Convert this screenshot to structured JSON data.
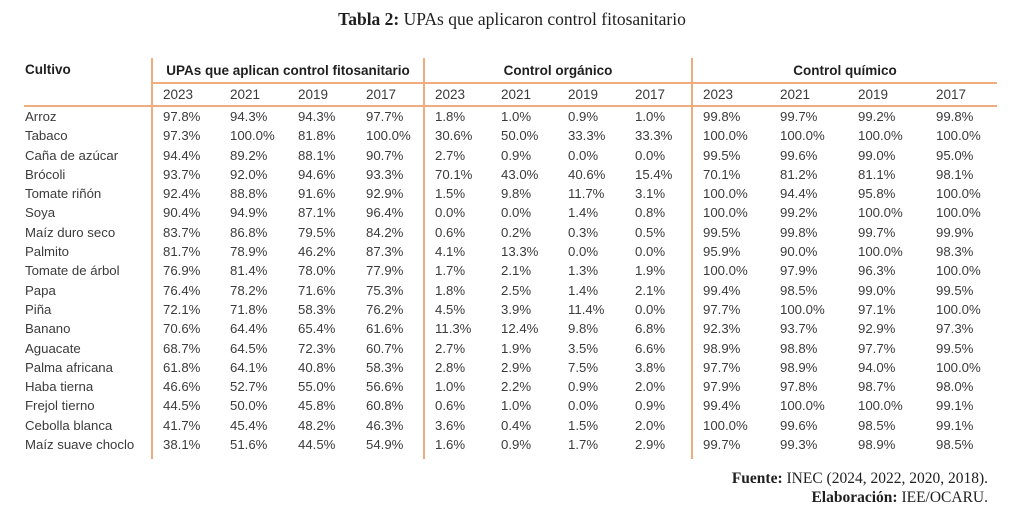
{
  "title": {
    "prefix": "Tabla 2:",
    "rest": " UPAs que aplicaron control fitosanitario"
  },
  "colors": {
    "accent_line": "#efac7f",
    "body_text": "#3b3b3b",
    "heading_text": "#1f1f1f",
    "background": "#ffffff"
  },
  "table": {
    "cultivo_header": "Cultivo",
    "groups": [
      {
        "label": "UPAs que aplican control fitosanitario",
        "years": [
          "2023",
          "2021",
          "2019",
          "2017"
        ]
      },
      {
        "label": "Control orgánico",
        "years": [
          "2023",
          "2021",
          "2019",
          "2017"
        ]
      },
      {
        "label": "Control químico",
        "years": [
          "2023",
          "2021",
          "2019",
          "2017"
        ]
      }
    ],
    "col_widths": {
      "cultivo": 128,
      "group1": [
        68,
        68,
        68,
        68
      ],
      "group2": [
        67,
        67,
        67,
        67
      ],
      "group3": [
        78,
        78,
        78,
        71
      ]
    },
    "rows": [
      {
        "cultivo": "Arroz",
        "values": [
          "97.8%",
          "94.3%",
          "94.3%",
          "97.7%",
          "1.8%",
          "1.0%",
          "0.9%",
          "1.0%",
          "99.8%",
          "99.7%",
          "99.2%",
          "99.8%"
        ]
      },
      {
        "cultivo": "Tabaco",
        "values": [
          "97.3%",
          "100.0%",
          "81.8%",
          "100.0%",
          "30.6%",
          "50.0%",
          "33.3%",
          "33.3%",
          "100.0%",
          "100.0%",
          "100.0%",
          "100.0%"
        ]
      },
      {
        "cultivo": "Caña de azúcar",
        "values": [
          "94.4%",
          "89.2%",
          "88.1%",
          "90.7%",
          "2.7%",
          "0.9%",
          "0.0%",
          "0.0%",
          "99.5%",
          "99.6%",
          "99.0%",
          "95.0%"
        ]
      },
      {
        "cultivo": "Brócoli",
        "values": [
          "93.7%",
          "92.0%",
          "94.6%",
          "93.3%",
          "70.1%",
          "43.0%",
          "40.6%",
          "15.4%",
          "70.1%",
          "81.2%",
          "81.1%",
          "98.1%"
        ]
      },
      {
        "cultivo": "Tomate riñón",
        "values": [
          "92.4%",
          "88.8%",
          "91.6%",
          "92.9%",
          "1.5%",
          "9.8%",
          "11.7%",
          "3.1%",
          "100.0%",
          "94.4%",
          "95.8%",
          "100.0%"
        ]
      },
      {
        "cultivo": "Soya",
        "values": [
          "90.4%",
          "94.9%",
          "87.1%",
          "96.4%",
          "0.0%",
          "0.0%",
          "1.4%",
          "0.8%",
          "100.0%",
          "99.2%",
          "100.0%",
          "100.0%"
        ]
      },
      {
        "cultivo": "Maíz duro seco",
        "values": [
          "83.7%",
          "86.8%",
          "79.5%",
          "84.2%",
          "0.6%",
          "0.2%",
          "0.3%",
          "0.5%",
          "99.5%",
          "99.8%",
          "99.7%",
          "99.9%"
        ]
      },
      {
        "cultivo": "Palmito",
        "values": [
          "81.7%",
          "78.9%",
          "46.2%",
          "87.3%",
          "4.1%",
          "13.3%",
          "0.0%",
          "0.0%",
          "95.9%",
          "90.0%",
          "100.0%",
          "98.3%"
        ]
      },
      {
        "cultivo": "Tomate de árbol",
        "values": [
          "76.9%",
          "81.4%",
          "78.0%",
          "77.9%",
          "1.7%",
          "2.1%",
          "1.3%",
          "1.9%",
          "100.0%",
          "97.9%",
          "96.3%",
          "100.0%"
        ]
      },
      {
        "cultivo": "Papa",
        "values": [
          "76.4%",
          "78.2%",
          "71.6%",
          "75.3%",
          "1.8%",
          "2.5%",
          "1.4%",
          "2.1%",
          "99.4%",
          "98.5%",
          "99.0%",
          "99.5%"
        ]
      },
      {
        "cultivo": "Piña",
        "values": [
          "72.1%",
          "71.8%",
          "58.3%",
          "76.2%",
          "4.5%",
          "3.9%",
          "11.4%",
          "0.0%",
          "97.7%",
          "100.0%",
          "97.1%",
          "100.0%"
        ]
      },
      {
        "cultivo": "Banano",
        "values": [
          "70.6%",
          "64.4%",
          "65.4%",
          "61.6%",
          "11.3%",
          "12.4%",
          "9.8%",
          "6.8%",
          "92.3%",
          "93.7%",
          "92.9%",
          "97.3%"
        ]
      },
      {
        "cultivo": "Aguacate",
        "values": [
          "68.7%",
          "64.5%",
          "72.3%",
          "60.7%",
          "2.7%",
          "1.9%",
          "3.5%",
          "6.6%",
          "98.9%",
          "98.8%",
          "97.7%",
          "99.5%"
        ]
      },
      {
        "cultivo": "Palma africana",
        "values": [
          "61.8%",
          "64.1%",
          "40.8%",
          "58.3%",
          "2.8%",
          "2.9%",
          "7.5%",
          "3.8%",
          "97.7%",
          "98.9%",
          "94.0%",
          "100.0%"
        ]
      },
      {
        "cultivo": "Haba tierna",
        "values": [
          "46.6%",
          "52.7%",
          "55.0%",
          "56.6%",
          "1.0%",
          "2.2%",
          "0.9%",
          "2.0%",
          "97.9%",
          "97.8%",
          "98.7%",
          "98.0%"
        ]
      },
      {
        "cultivo": "Frejol tierno",
        "values": [
          "44.5%",
          "50.0%",
          "45.8%",
          "60.8%",
          "0.6%",
          "1.0%",
          "0.0%",
          "0.9%",
          "99.4%",
          "100.0%",
          "100.0%",
          "99.1%"
        ]
      },
      {
        "cultivo": "Cebolla blanca",
        "values": [
          "41.7%",
          "45.4%",
          "48.2%",
          "46.3%",
          "3.6%",
          "0.4%",
          "1.5%",
          "2.0%",
          "100.0%",
          "99.6%",
          "98.5%",
          "99.1%"
        ]
      },
      {
        "cultivo": "Maíz suave choclo",
        "values": [
          "38.1%",
          "51.6%",
          "44.5%",
          "54.9%",
          "1.6%",
          "0.9%",
          "1.7%",
          "2.9%",
          "99.7%",
          "99.3%",
          "98.9%",
          "98.5%"
        ]
      }
    ]
  },
  "footer": {
    "fuente_label": "Fuente:",
    "fuente_text": " INEC (2024, 2022, 2020, 2018).",
    "elaboracion_label": "Elaboración:",
    "elaboracion_text": " IEE/OCARU."
  }
}
